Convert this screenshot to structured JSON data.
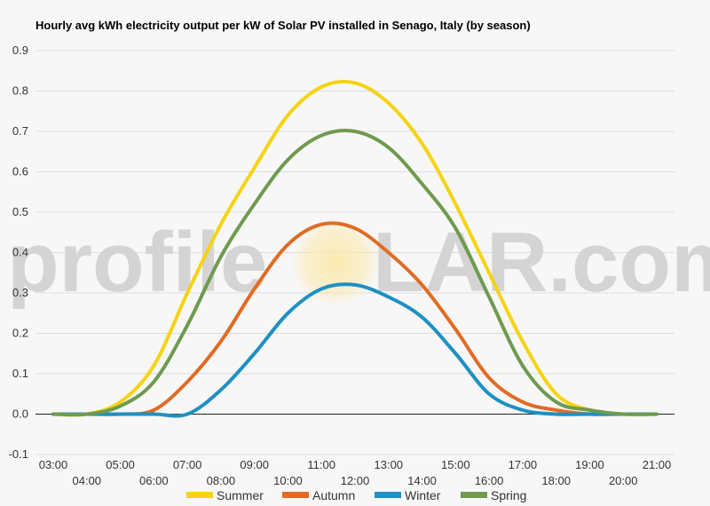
{
  "chart_data": {
    "type": "line",
    "title": "Hourly avg kWh electricity output per kW of Solar PV installed in Senago, Italy (by season)",
    "xlabel": "",
    "ylabel": "",
    "x": [
      "03:00",
      "04:00",
      "05:00",
      "06:00",
      "07:00",
      "08:00",
      "09:00",
      "10:00",
      "11:00",
      "12:00",
      "13:00",
      "14:00",
      "15:00",
      "16:00",
      "17:00",
      "18:00",
      "19:00",
      "20:00",
      "21:00"
    ],
    "ylim": [
      -0.1,
      0.9
    ],
    "yticks": [
      "-0.1",
      "0.0",
      "0.1",
      "0.2",
      "0.3",
      "0.4",
      "0.5",
      "0.6",
      "0.7",
      "0.8",
      "0.9"
    ],
    "grid": true,
    "legend_position": "bottom",
    "series": [
      {
        "name": "Summer",
        "color": "#f5d311",
        "values": [
          0.0,
          0.0,
          0.03,
          0.12,
          0.3,
          0.47,
          0.61,
          0.74,
          0.81,
          0.82,
          0.77,
          0.67,
          0.52,
          0.35,
          0.18,
          0.05,
          0.01,
          0.0,
          0.0
        ]
      },
      {
        "name": "Autumn",
        "color": "#e06c24",
        "values": [
          0.0,
          0.0,
          0.0,
          0.01,
          0.08,
          0.18,
          0.31,
          0.42,
          0.47,
          0.46,
          0.4,
          0.32,
          0.21,
          0.09,
          0.03,
          0.01,
          0.0,
          0.0,
          0.0
        ]
      },
      {
        "name": "Winter",
        "color": "#1f90c2",
        "values": [
          0.0,
          0.0,
          0.0,
          0.0,
          0.0,
          0.06,
          0.15,
          0.25,
          0.31,
          0.32,
          0.29,
          0.24,
          0.15,
          0.05,
          0.01,
          0.0,
          0.0,
          0.0,
          0.0
        ]
      },
      {
        "name": "Spring",
        "color": "#6f9a4f",
        "values": [
          0.0,
          0.0,
          0.02,
          0.08,
          0.22,
          0.39,
          0.52,
          0.63,
          0.69,
          0.7,
          0.66,
          0.57,
          0.46,
          0.29,
          0.12,
          0.03,
          0.01,
          0.0,
          0.0
        ]
      }
    ]
  },
  "watermark": {
    "text_left": "profile",
    "text_right": "LAR.com"
  }
}
